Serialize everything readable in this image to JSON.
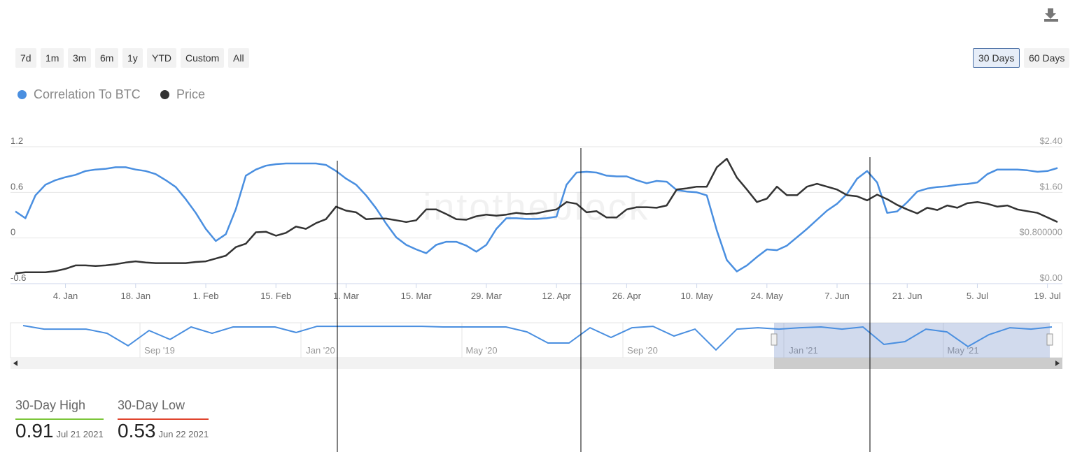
{
  "toolbar": {
    "ranges": [
      "7d",
      "1m",
      "3m",
      "6m",
      "1y",
      "YTD",
      "Custom",
      "All"
    ],
    "periods": [
      "30 Days",
      "60 Days"
    ]
  },
  "chart_data": {
    "type": "line",
    "watermark": "intotheblock",
    "categories": [
      null,
      null,
      null,
      null,
      null,
      "4. Jan",
      null,
      null,
      null,
      null,
      null,
      null,
      "18. Jan",
      null,
      null,
      null,
      null,
      null,
      null,
      "1. Feb",
      null,
      null,
      null,
      null,
      null,
      null,
      "15. Feb",
      null,
      null,
      null,
      null,
      null,
      null,
      "1. Mar",
      null,
      null,
      null,
      null,
      null,
      null,
      "15. Mar",
      null,
      null,
      null,
      null,
      null,
      null,
      "29. Mar",
      null,
      null,
      null,
      null,
      null,
      null,
      "12. Apr",
      null,
      null,
      null,
      null,
      null,
      null,
      "26. Apr",
      null,
      null,
      null,
      null,
      null,
      null,
      "10. May",
      null,
      null,
      null,
      null,
      null,
      null,
      "24. May",
      null,
      null,
      null,
      null,
      null,
      null,
      "7. Jun",
      null,
      null,
      null,
      null,
      null,
      null,
      "21. Jun",
      null,
      null,
      null,
      null,
      null,
      null,
      "5. Jul",
      null,
      null,
      null,
      null,
      null,
      null,
      "19. Jul",
      null
    ],
    "series": [
      {
        "name": "Correlation To BTC",
        "color": "#4a8fe0",
        "values": [
          0.35,
          0.26,
          0.56,
          0.7,
          0.76,
          0.8,
          0.83,
          0.88,
          0.9,
          0.91,
          0.93,
          0.93,
          0.9,
          0.88,
          0.84,
          0.76,
          0.67,
          0.51,
          0.33,
          0.12,
          -0.04,
          0.05,
          0.38,
          0.82,
          0.9,
          0.95,
          0.97,
          0.98,
          0.98,
          0.98,
          0.98,
          0.96,
          0.88,
          0.78,
          0.7,
          0.56,
          0.39,
          0.19,
          0.01,
          -0.09,
          -0.15,
          -0.2,
          -0.09,
          -0.05,
          -0.05,
          -0.1,
          -0.18,
          -0.09,
          0.12,
          0.26,
          0.26,
          0.25,
          0.25,
          0.26,
          0.28,
          0.7,
          0.86,
          0.87,
          0.86,
          0.82,
          0.81,
          0.81,
          0.76,
          0.72,
          0.75,
          0.74,
          0.63,
          0.61,
          0.6,
          0.56,
          0.1,
          -0.29,
          -0.44,
          -0.36,
          -0.25,
          -0.15,
          -0.16,
          -0.1,
          0.01,
          0.12,
          0.24,
          0.36,
          0.45,
          0.58,
          0.78,
          0.88,
          0.73,
          0.33,
          0.35,
          0.47,
          0.61,
          0.65,
          0.67,
          0.68,
          0.7,
          0.71,
          0.73,
          0.84,
          0.9,
          0.9,
          0.9,
          0.89,
          0.87,
          0.88,
          0.92
        ]
      },
      {
        "name": "Price",
        "color": "#333333",
        "axis": "y2",
        "values": [
          0.18,
          0.2,
          0.2,
          0.2,
          0.22,
          0.26,
          0.32,
          0.32,
          0.31,
          0.32,
          0.34,
          0.37,
          0.39,
          0.37,
          0.36,
          0.36,
          0.36,
          0.36,
          0.38,
          0.39,
          0.44,
          0.49,
          0.64,
          0.7,
          0.9,
          0.91,
          0.84,
          0.89,
          1.0,
          0.96,
          1.06,
          1.13,
          1.35,
          1.28,
          1.25,
          1.13,
          1.14,
          1.14,
          1.11,
          1.08,
          1.11,
          1.3,
          1.3,
          1.22,
          1.13,
          1.12,
          1.18,
          1.21,
          1.19,
          1.21,
          1.24,
          1.22,
          1.23,
          1.27,
          1.3,
          1.43,
          1.4,
          1.25,
          1.27,
          1.16,
          1.16,
          1.3,
          1.34,
          1.34,
          1.33,
          1.37,
          1.65,
          1.67,
          1.7,
          1.7,
          2.04,
          2.19,
          1.86,
          1.65,
          1.43,
          1.49,
          1.7,
          1.55,
          1.55,
          1.7,
          1.75,
          1.7,
          1.65,
          1.55,
          1.53,
          1.46,
          1.56,
          1.48,
          1.38,
          1.3,
          1.23,
          1.33,
          1.29,
          1.37,
          1.33,
          1.41,
          1.43,
          1.4,
          1.35,
          1.37,
          1.3,
          1.27,
          1.24,
          1.16,
          1.08
        ]
      }
    ],
    "ylim": [
      -0.6,
      1.2
    ],
    "yticks": [
      -0.6,
      0,
      0.6,
      1.2
    ],
    "y2lim": [
      0,
      2.4
    ],
    "y2ticks": [
      {
        "value": 0,
        "label": "$0.00"
      },
      {
        "value": 0.8,
        "label": "$0.800000"
      },
      {
        "value": 1.6,
        "label": "$1.60"
      },
      {
        "value": 2.4,
        "label": "$2.40"
      }
    ],
    "grid": true,
    "legend": "top-left",
    "navigator": {
      "labels": [
        "Sep '19",
        "Jan '20",
        "May '20",
        "Sep '20",
        "Jan '21",
        "May '21"
      ],
      "color": "#4a8fe0",
      "ylim": [
        -0.6,
        0.95
      ],
      "values": [
        0.88,
        0.7,
        0.7,
        0.7,
        0.49,
        -0.14,
        0.63,
        0.18,
        0.81,
        0.49,
        0.81,
        0.81,
        0.81,
        0.53,
        0.84,
        0.84,
        0.84,
        0.84,
        0.84,
        0.84,
        0.81,
        0.81,
        0.81,
        0.81,
        0.56,
        0.0,
        0.0,
        0.77,
        0.28,
        0.77,
        0.84,
        0.35,
        0.7,
        -0.35,
        0.7,
        0.77,
        0.7,
        0.77,
        0.81,
        0.7,
        0.81,
        -0.07,
        0.07,
        0.7,
        0.56,
        -0.18,
        0.42,
        0.77,
        0.7,
        0.81
      ]
    }
  },
  "stats": [
    {
      "label": "30-Day High",
      "value": 0.91,
      "date": "Jul 21 2021",
      "color": "#7cc63a"
    },
    {
      "label": "30-Day Low",
      "value": 0.53,
      "date": "Jun 22 2021",
      "color": "#e0452e"
    }
  ]
}
